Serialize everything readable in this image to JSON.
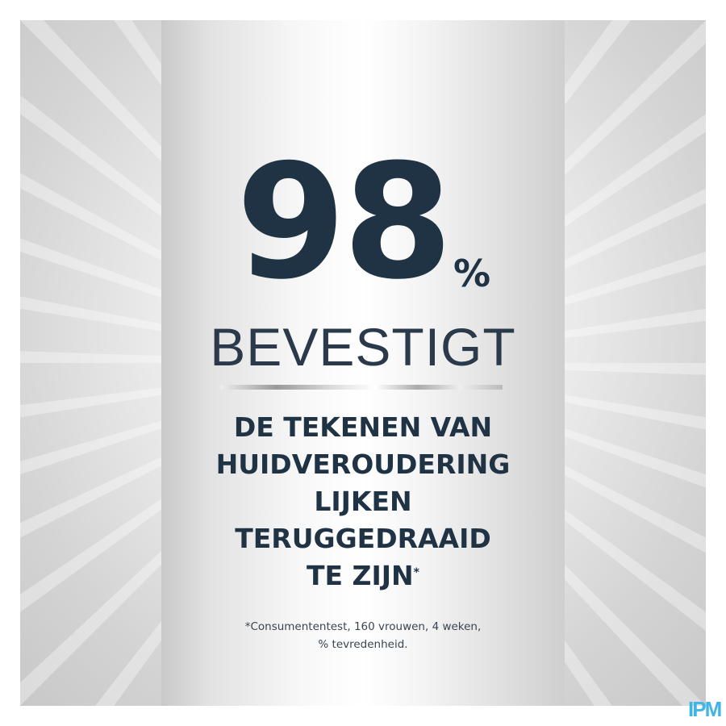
{
  "headline": {
    "number": "98",
    "percent": "%",
    "verb": "BEVESTIGT"
  },
  "claim": {
    "lines": [
      "DE TEKENEN VAN",
      "HUIDVEROUDERING",
      "LIJKEN",
      "TERUGGEDRAAID",
      "TE ZIJN"
    ],
    "asterisk": "*"
  },
  "footnote": {
    "lines": [
      "*Consumententest, 160 vrouwen, 4 weken,",
      "% tevredenheid."
    ]
  },
  "logo": {
    "text": "IPM",
    "color": "#3fb4e6"
  },
  "colors": {
    "text": "#1f3344"
  }
}
